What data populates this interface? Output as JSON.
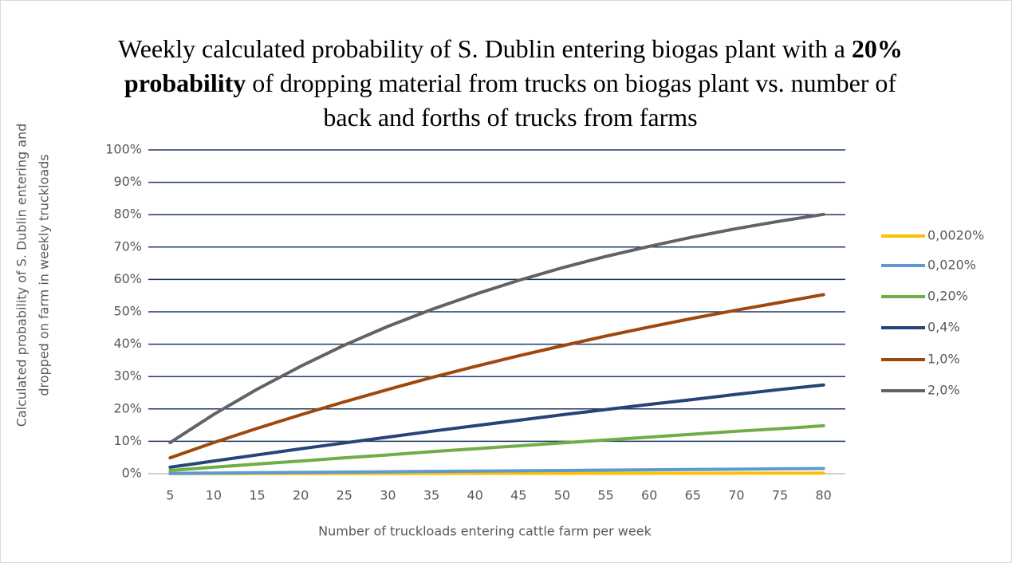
{
  "chart_data": {
    "type": "line",
    "title_parts": [
      "Weekly calculated probability of S. Dublin entering biogas plant with a ",
      "20% probability",
      " of dropping material from trucks on biogas plant vs. number of back and forths of trucks from farms"
    ],
    "xlabel": "Number of truckloads entering cattle farm per week",
    "ylabel": [
      "Calculated probability of S. Dublin entering and",
      "dropped on farm in weekly truckloads"
    ],
    "categories": [
      5,
      10,
      15,
      20,
      25,
      30,
      35,
      40,
      45,
      50,
      55,
      60,
      65,
      70,
      75,
      80
    ],
    "ylim": [
      0,
      100
    ],
    "yticks": [
      {
        "value": 0,
        "label": "0%"
      },
      {
        "value": 10,
        "label": "10%"
      },
      {
        "value": 20,
        "label": "20%"
      },
      {
        "value": 30,
        "label": "30%"
      },
      {
        "value": 40,
        "label": "40%"
      },
      {
        "value": 50,
        "label": "50%"
      },
      {
        "value": 60,
        "label": "60%"
      },
      {
        "value": 70,
        "label": "70%"
      },
      {
        "value": 80,
        "label": "80%"
      },
      {
        "value": 90,
        "label": "90%"
      },
      {
        "value": 100,
        "label": "100%"
      }
    ],
    "grid": true,
    "legend": "right",
    "series": [
      {
        "name": "0,0020%",
        "color": "#FFC000",
        "values": [
          0.01,
          0.02,
          0.03,
          0.04,
          0.05,
          0.06,
          0.07,
          0.08,
          0.09,
          0.1,
          0.11,
          0.12,
          0.13,
          0.14,
          0.15,
          0.16
        ]
      },
      {
        "name": "0,020%",
        "color": "#5B9BD5",
        "values": [
          0.1,
          0.2,
          0.3,
          0.4,
          0.5,
          0.6,
          0.7,
          0.8,
          0.9,
          1.0,
          1.1,
          1.2,
          1.3,
          1.4,
          1.5,
          1.6
        ]
      },
      {
        "name": "0,20%",
        "color": "#70AD47",
        "values": [
          1.0,
          2.0,
          3.0,
          3.9,
          4.9,
          5.8,
          6.8,
          7.7,
          8.6,
          9.5,
          10.4,
          11.3,
          12.2,
          13.1,
          13.9,
          14.8
        ]
      },
      {
        "name": "0,4%",
        "color": "#264478",
        "values": [
          2.0,
          3.9,
          5.8,
          7.7,
          9.5,
          11.3,
          13.1,
          14.8,
          16.5,
          18.2,
          19.8,
          21.4,
          22.9,
          24.5,
          26.0,
          27.4
        ]
      },
      {
        "name": "1,0%",
        "color": "#9E480E",
        "values": [
          4.9,
          9.6,
          14.0,
          18.2,
          22.2,
          26.0,
          29.7,
          33.1,
          36.4,
          39.5,
          42.5,
          45.3,
          48.0,
          50.5,
          52.9,
          55.3
        ]
      },
      {
        "name": "2,0%",
        "color": "#636363",
        "values": [
          9.6,
          18.3,
          26.1,
          33.2,
          39.7,
          45.5,
          50.7,
          55.4,
          59.7,
          63.6,
          67.1,
          70.2,
          73.1,
          75.7,
          78.0,
          80.1
        ]
      }
    ]
  }
}
